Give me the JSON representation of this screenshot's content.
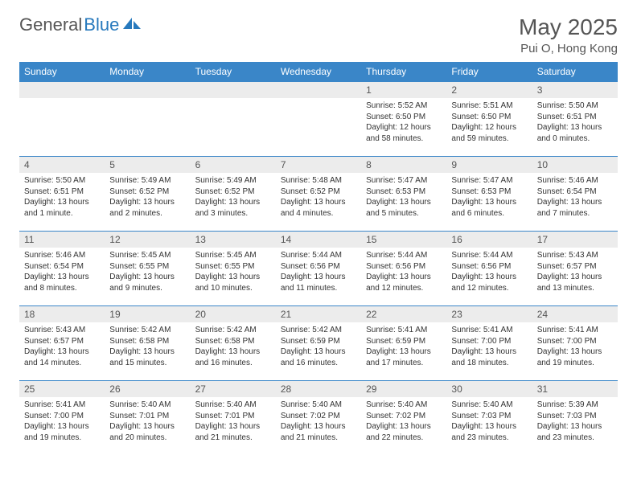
{
  "logo": {
    "text1": "General",
    "text2": "Blue"
  },
  "title": "May 2025",
  "location": "Pui O, Hong Kong",
  "colors": {
    "header_bg": "#3a86c8",
    "header_text": "#ffffff",
    "daynum_bg": "#ececec",
    "row_border": "#3a86c8",
    "logo_gray": "#555555",
    "logo_blue": "#2779bd"
  },
  "weekdays": [
    "Sunday",
    "Monday",
    "Tuesday",
    "Wednesday",
    "Thursday",
    "Friday",
    "Saturday"
  ],
  "first_weekday_index": 4,
  "days": [
    {
      "n": 1,
      "sunrise": "5:52 AM",
      "sunset": "6:50 PM",
      "daylight": "12 hours and 58 minutes."
    },
    {
      "n": 2,
      "sunrise": "5:51 AM",
      "sunset": "6:50 PM",
      "daylight": "12 hours and 59 minutes."
    },
    {
      "n": 3,
      "sunrise": "5:50 AM",
      "sunset": "6:51 PM",
      "daylight": "13 hours and 0 minutes."
    },
    {
      "n": 4,
      "sunrise": "5:50 AM",
      "sunset": "6:51 PM",
      "daylight": "13 hours and 1 minute."
    },
    {
      "n": 5,
      "sunrise": "5:49 AM",
      "sunset": "6:52 PM",
      "daylight": "13 hours and 2 minutes."
    },
    {
      "n": 6,
      "sunrise": "5:49 AM",
      "sunset": "6:52 PM",
      "daylight": "13 hours and 3 minutes."
    },
    {
      "n": 7,
      "sunrise": "5:48 AM",
      "sunset": "6:52 PM",
      "daylight": "13 hours and 4 minutes."
    },
    {
      "n": 8,
      "sunrise": "5:47 AM",
      "sunset": "6:53 PM",
      "daylight": "13 hours and 5 minutes."
    },
    {
      "n": 9,
      "sunrise": "5:47 AM",
      "sunset": "6:53 PM",
      "daylight": "13 hours and 6 minutes."
    },
    {
      "n": 10,
      "sunrise": "5:46 AM",
      "sunset": "6:54 PM",
      "daylight": "13 hours and 7 minutes."
    },
    {
      "n": 11,
      "sunrise": "5:46 AM",
      "sunset": "6:54 PM",
      "daylight": "13 hours and 8 minutes."
    },
    {
      "n": 12,
      "sunrise": "5:45 AM",
      "sunset": "6:55 PM",
      "daylight": "13 hours and 9 minutes."
    },
    {
      "n": 13,
      "sunrise": "5:45 AM",
      "sunset": "6:55 PM",
      "daylight": "13 hours and 10 minutes."
    },
    {
      "n": 14,
      "sunrise": "5:44 AM",
      "sunset": "6:56 PM",
      "daylight": "13 hours and 11 minutes."
    },
    {
      "n": 15,
      "sunrise": "5:44 AM",
      "sunset": "6:56 PM",
      "daylight": "13 hours and 12 minutes."
    },
    {
      "n": 16,
      "sunrise": "5:44 AM",
      "sunset": "6:56 PM",
      "daylight": "13 hours and 12 minutes."
    },
    {
      "n": 17,
      "sunrise": "5:43 AM",
      "sunset": "6:57 PM",
      "daylight": "13 hours and 13 minutes."
    },
    {
      "n": 18,
      "sunrise": "5:43 AM",
      "sunset": "6:57 PM",
      "daylight": "13 hours and 14 minutes."
    },
    {
      "n": 19,
      "sunrise": "5:42 AM",
      "sunset": "6:58 PM",
      "daylight": "13 hours and 15 minutes."
    },
    {
      "n": 20,
      "sunrise": "5:42 AM",
      "sunset": "6:58 PM",
      "daylight": "13 hours and 16 minutes."
    },
    {
      "n": 21,
      "sunrise": "5:42 AM",
      "sunset": "6:59 PM",
      "daylight": "13 hours and 16 minutes."
    },
    {
      "n": 22,
      "sunrise": "5:41 AM",
      "sunset": "6:59 PM",
      "daylight": "13 hours and 17 minutes."
    },
    {
      "n": 23,
      "sunrise": "5:41 AM",
      "sunset": "7:00 PM",
      "daylight": "13 hours and 18 minutes."
    },
    {
      "n": 24,
      "sunrise": "5:41 AM",
      "sunset": "7:00 PM",
      "daylight": "13 hours and 19 minutes."
    },
    {
      "n": 25,
      "sunrise": "5:41 AM",
      "sunset": "7:00 PM",
      "daylight": "13 hours and 19 minutes."
    },
    {
      "n": 26,
      "sunrise": "5:40 AM",
      "sunset": "7:01 PM",
      "daylight": "13 hours and 20 minutes."
    },
    {
      "n": 27,
      "sunrise": "5:40 AM",
      "sunset": "7:01 PM",
      "daylight": "13 hours and 21 minutes."
    },
    {
      "n": 28,
      "sunrise": "5:40 AM",
      "sunset": "7:02 PM",
      "daylight": "13 hours and 21 minutes."
    },
    {
      "n": 29,
      "sunrise": "5:40 AM",
      "sunset": "7:02 PM",
      "daylight": "13 hours and 22 minutes."
    },
    {
      "n": 30,
      "sunrise": "5:40 AM",
      "sunset": "7:03 PM",
      "daylight": "13 hours and 23 minutes."
    },
    {
      "n": 31,
      "sunrise": "5:39 AM",
      "sunset": "7:03 PM",
      "daylight": "13 hours and 23 minutes."
    }
  ],
  "labels": {
    "sunrise": "Sunrise:",
    "sunset": "Sunset:",
    "daylight": "Daylight:"
  }
}
